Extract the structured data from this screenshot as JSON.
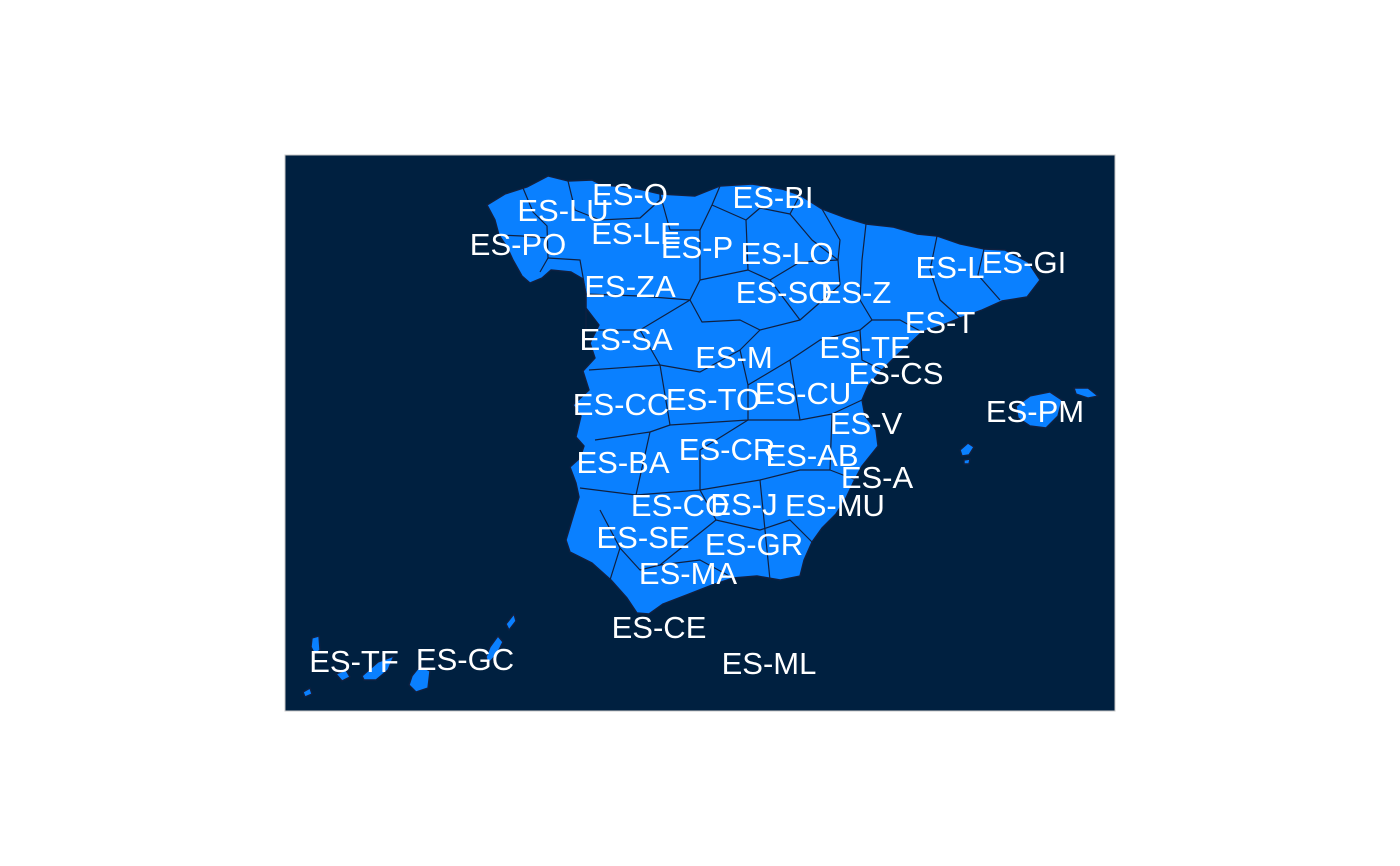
{
  "colors": {
    "background": "#ffffff",
    "panel": "#002040",
    "land": "#0a80ff",
    "border": "#102040",
    "label": "#ffffff"
  },
  "labels": [
    {
      "code": "ES-O"
    },
    {
      "code": "ES-BI"
    },
    {
      "code": "ES-LU"
    },
    {
      "code": "ES-LE"
    },
    {
      "code": "ES-PO"
    },
    {
      "code": "ES-P"
    },
    {
      "code": "ES-LO"
    },
    {
      "code": "ES-L"
    },
    {
      "code": "ES-GI"
    },
    {
      "code": "ES-ZA"
    },
    {
      "code": "ES-SO"
    },
    {
      "code": "ES-Z"
    },
    {
      "code": "ES-T"
    },
    {
      "code": "ES-SA"
    },
    {
      "code": "ES-M"
    },
    {
      "code": "ES-TE"
    },
    {
      "code": "ES-CS"
    },
    {
      "code": "ES-CC"
    },
    {
      "code": "ES-TO"
    },
    {
      "code": "ES-CU"
    },
    {
      "code": "ES-PM"
    },
    {
      "code": "ES-V"
    },
    {
      "code": "ES-BA"
    },
    {
      "code": "ES-CR"
    },
    {
      "code": "ES-AB"
    },
    {
      "code": "ES-A"
    },
    {
      "code": "ES-CO"
    },
    {
      "code": "ES-J"
    },
    {
      "code": "ES-MU"
    },
    {
      "code": "ES-SE"
    },
    {
      "code": "ES-GR"
    },
    {
      "code": "ES-MA"
    },
    {
      "code": "ES-CE"
    },
    {
      "code": "ES-TF"
    },
    {
      "code": "ES-GC"
    },
    {
      "code": "ES-ML"
    }
  ]
}
